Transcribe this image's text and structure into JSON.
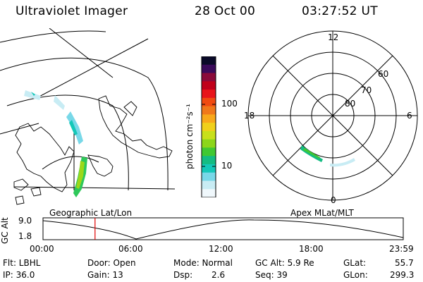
{
  "header": {
    "title": "Ultraviolet Imager",
    "date": "28 Oct 00",
    "time": "03:27:52 UT"
  },
  "colorbar": {
    "unit_label": "photon cm⁻²s⁻¹",
    "ticks": [
      "100",
      "10"
    ],
    "colors": [
      "#0a0a28",
      "#3a0a5a",
      "#8a0a3a",
      "#c0001a",
      "#e8141a",
      "#f04a10",
      "#f0781a",
      "#f8a81a",
      "#f0d01a",
      "#c8e01a",
      "#8cd61a",
      "#40c832",
      "#14bc82",
      "#14c8b8",
      "#78d8e8",
      "#c8ecf4",
      "#f0f8fc"
    ]
  },
  "left_map": {
    "caption": "Geographic Lat/Lon"
  },
  "right_map": {
    "caption": "Apex MLat/MLT",
    "mlt_labels": {
      "top": "12",
      "left": "18",
      "right": "6",
      "bottom": "0"
    },
    "lat_labels": [
      "60",
      "70",
      "80"
    ]
  },
  "timeline": {
    "ylabel": "GC Alt",
    "ymax": "9.0",
    "ymin": "1.8",
    "ticks": [
      "00:00",
      "06:00",
      "12:00",
      "18:00",
      "23:59"
    ],
    "current_time": "03:27:52",
    "line_color": "#e00000"
  },
  "status": {
    "col1": {
      "filter": "Flt: LBHL",
      "ip": "IP: 36.0"
    },
    "col2": {
      "door": "Door: Open",
      "gain": "Gain: 13"
    },
    "col3": {
      "mode": "Mode: Normal",
      "dsp_label": "Dsp:",
      "dsp_value": "2.6"
    },
    "col4": {
      "gcalt": "GC Alt: 5.9 Re",
      "seq": "Seq: 39"
    },
    "col5": {
      "glat_label": "GLat:",
      "glat_value": "55.7",
      "glon_label": "GLon:",
      "glon_value": "299.3"
    }
  }
}
